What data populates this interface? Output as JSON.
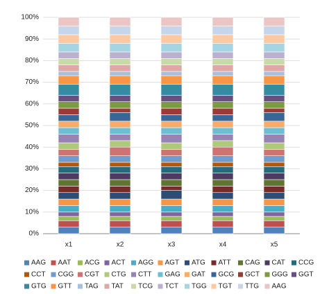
{
  "chart_data": {
    "type": "bar",
    "stacked": true,
    "grid": true,
    "legend": "bottom",
    "categories": [
      "x1",
      "x2",
      "x3",
      "x4",
      "x5"
    ],
    "ylim": [
      0,
      100
    ],
    "yticks": [
      {
        "value": 0,
        "label": "0%"
      },
      {
        "value": 10,
        "label": "10%"
      },
      {
        "value": 20,
        "label": "20%"
      },
      {
        "value": 30,
        "label": "30%"
      },
      {
        "value": 40,
        "label": "40%"
      },
      {
        "value": 50,
        "label": "50%"
      },
      {
        "value": 60,
        "label": "60%"
      },
      {
        "value": 70,
        "label": "70%"
      },
      {
        "value": 80,
        "label": "80%"
      },
      {
        "value": 90,
        "label": "90%"
      },
      {
        "value": 100,
        "label": "100%"
      }
    ],
    "series": [
      {
        "name": "AAG",
        "color": "#4F81BD",
        "values": [
          3,
          3,
          3,
          3,
          3
        ]
      },
      {
        "name": "AAT",
        "color": "#C0504D",
        "values": [
          3,
          3,
          3,
          3,
          3
        ]
      },
      {
        "name": "ACG",
        "color": "#9BBB59",
        "values": [
          2,
          2,
          2,
          2,
          2
        ]
      },
      {
        "name": "ACT",
        "color": "#8064A2",
        "values": [
          2,
          2,
          2,
          2,
          2
        ]
      },
      {
        "name": "AGG",
        "color": "#4BACC6",
        "values": [
          3,
          3,
          3,
          3,
          3
        ]
      },
      {
        "name": "AGT",
        "color": "#F79646",
        "values": [
          3,
          3,
          3,
          3,
          3
        ]
      },
      {
        "name": "ATG",
        "color": "#2C4D75",
        "values": [
          3,
          3,
          4,
          3,
          3
        ]
      },
      {
        "name": "ATT",
        "color": "#772C2A",
        "values": [
          3,
          3,
          2,
          3,
          3
        ]
      },
      {
        "name": "CAG",
        "color": "#5F7530",
        "values": [
          3,
          3,
          3,
          3,
          3
        ]
      },
      {
        "name": "CAT",
        "color": "#4D3B62",
        "values": [
          3,
          3,
          3,
          3,
          3
        ]
      },
      {
        "name": "CCG",
        "color": "#276A7C",
        "values": [
          3,
          3,
          3,
          3,
          3
        ]
      },
      {
        "name": "CCT",
        "color": "#B65708",
        "values": [
          2,
          2,
          2,
          2,
          2
        ]
      },
      {
        "name": "CGG",
        "color": "#729ACA",
        "values": [
          3,
          3,
          3,
          3,
          3
        ]
      },
      {
        "name": "CGT",
        "color": "#CD7371",
        "values": [
          3,
          4,
          3,
          4,
          3
        ]
      },
      {
        "name": "CTG",
        "color": "#AFC97A",
        "values": [
          3,
          3,
          3,
          3,
          3
        ]
      },
      {
        "name": "CTT",
        "color": "#9983B5",
        "values": [
          4,
          3,
          4,
          3,
          4
        ]
      },
      {
        "name": "GAG",
        "color": "#6FBDD1",
        "values": [
          3,
          3,
          3,
          3,
          3
        ]
      },
      {
        "name": "GAT",
        "color": "#F9AB6B",
        "values": [
          3,
          3,
          3,
          3,
          3
        ]
      },
      {
        "name": "GCG",
        "color": "#3A6595",
        "values": [
          3,
          4,
          3,
          3,
          4
        ]
      },
      {
        "name": "GCT",
        "color": "#9C3A38",
        "values": [
          3,
          2,
          3,
          3,
          2
        ]
      },
      {
        "name": "GGG",
        "color": "#7D9A3F",
        "values": [
          3,
          3,
          3,
          3,
          3
        ]
      },
      {
        "name": "GGT",
        "color": "#664F83",
        "values": [
          3,
          3,
          3,
          3,
          3
        ]
      },
      {
        "name": "GTG",
        "color": "#358BA2",
        "values": [
          5,
          5,
          5,
          5,
          5
        ]
      },
      {
        "name": "GTT",
        "color": "#F79646",
        "values": [
          4,
          4,
          4,
          4,
          4
        ]
      },
      {
        "name": "TAG",
        "color": "#A7C0DE",
        "values": [
          2,
          2,
          2,
          2,
          2
        ]
      },
      {
        "name": "TAT",
        "color": "#DFA7A6",
        "values": [
          3,
          3,
          3,
          3,
          3
        ]
      },
      {
        "name": "TCG",
        "color": "#C9DAA8",
        "values": [
          3,
          3,
          3,
          3,
          3
        ]
      },
      {
        "name": "TCT",
        "color": "#BCAFCF",
        "values": [
          3,
          3,
          3,
          3,
          3
        ]
      },
      {
        "name": "TGG",
        "color": "#A5D5E2",
        "values": [
          4,
          4,
          4,
          4,
          4
        ]
      },
      {
        "name": "TGT",
        "color": "#FBC9A3",
        "values": [
          4,
          4,
          4,
          4,
          4
        ]
      },
      {
        "name": "TTG",
        "color": "#C6D5EA",
        "values": [
          4,
          4,
          4,
          4,
          4
        ]
      },
      {
        "name": "AAG",
        "color": "#EAC5C4",
        "values": [
          4,
          4,
          4,
          4,
          4
        ]
      }
    ]
  }
}
